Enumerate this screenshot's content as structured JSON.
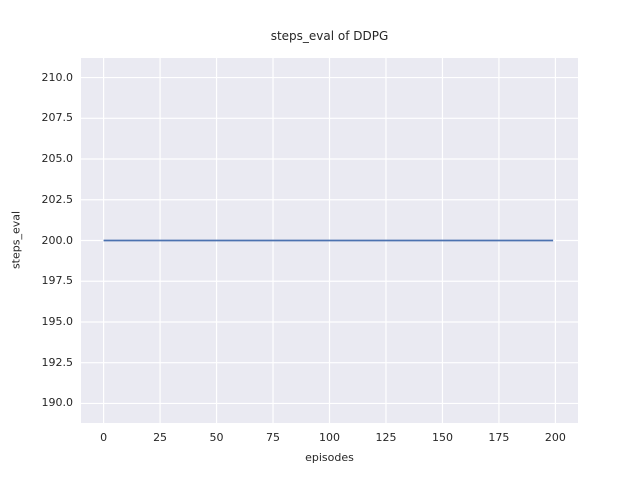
{
  "chart_data": {
    "type": "line",
    "title": "steps_eval of DDPG",
    "xlabel": "episodes",
    "ylabel": "steps_eval",
    "xlim": [
      -10,
      210
    ],
    "ylim": [
      188.8,
      211.2
    ],
    "grid": true,
    "legend": null,
    "x_ticks": [
      0,
      25,
      50,
      75,
      100,
      125,
      150,
      175,
      200
    ],
    "x_tick_labels": [
      "0",
      "25",
      "50",
      "75",
      "100",
      "125",
      "150",
      "175",
      "200"
    ],
    "y_ticks": [
      190.0,
      192.5,
      195.0,
      197.5,
      200.0,
      202.5,
      205.0,
      207.5,
      210.0
    ],
    "y_tick_labels": [
      "190.0",
      "192.5",
      "195.0",
      "197.5",
      "200.0",
      "202.5",
      "205.0",
      "207.5",
      "210.0"
    ],
    "series": [
      {
        "name": "steps_eval",
        "color": "#4c72b0",
        "x": [
          0,
          199
        ],
        "y": [
          200,
          200
        ]
      }
    ],
    "style": {
      "plot_bg": "#eaeaf2",
      "grid_color": "#ffffff",
      "text_color": "#262626"
    }
  }
}
